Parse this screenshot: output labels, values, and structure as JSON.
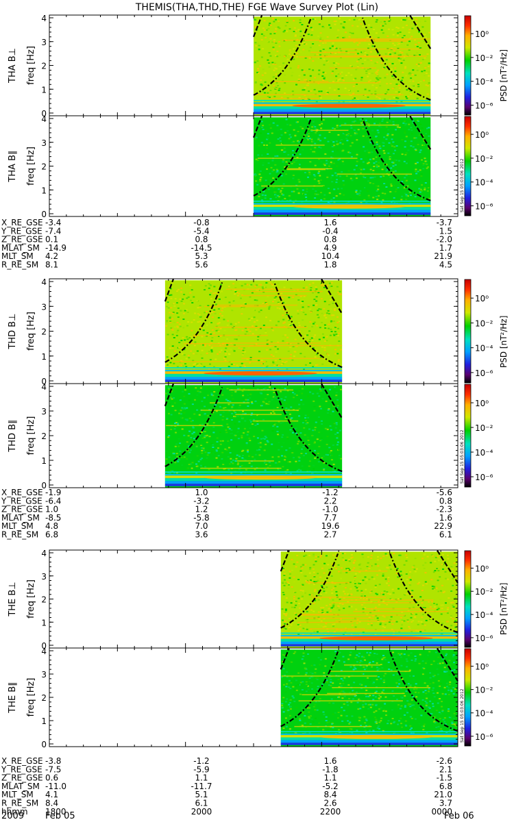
{
  "title": "THEMIS(THA,THD,THE) FGE Wave Survey Plot (Lin)",
  "psd_label": "PSD [nT²/Hz]",
  "freq_label": "freq [Hz]",
  "stamp": "Sat Sep 15 05:03:06 2012",
  "colorbar_ticks": [
    "10⁰",
    "10⁻²",
    "10⁻⁴",
    "10⁻⁶"
  ],
  "panels": [
    {
      "ylabel": "THA B⊥"
    },
    {
      "ylabel": "THA B∥"
    },
    {
      "ylabel": "THD B⊥"
    },
    {
      "ylabel": "THD B∥"
    },
    {
      "ylabel": "THE B⊥"
    },
    {
      "ylabel": "THE B∥"
    }
  ],
  "ephemeris": [
    {
      "rows": [
        {
          "label": "X_RE_GSE",
          "values": [
            "-3.4",
            "-0.8",
            "1.6",
            "-3.7"
          ]
        },
        {
          "label": "Y_RE_GSE",
          "values": [
            "-7.4",
            "-5.4",
            "-0.4",
            "1.5"
          ]
        },
        {
          "label": "Z_RE_GSE",
          "values": [
            "0.1",
            "0.8",
            "0.8",
            "-2.0"
          ]
        },
        {
          "label": "MLAT_SM",
          "values": [
            "-14.9",
            "-14.5",
            "4.9",
            "1.7"
          ]
        },
        {
          "label": "MLT_SM",
          "values": [
            "4.2",
            "5.3",
            "10.4",
            "21.9"
          ]
        },
        {
          "label": "R_RE_SM",
          "values": [
            "8.1",
            "5.6",
            "1.8",
            "4.5"
          ]
        }
      ]
    },
    {
      "rows": [
        {
          "label": "X_RE_GSE",
          "values": [
            "-1.9",
            "1.0",
            "-1.2",
            "-5.6"
          ]
        },
        {
          "label": "Y_RE_GSE",
          "values": [
            "-6.4",
            "-3.2",
            "2.2",
            "0.8"
          ]
        },
        {
          "label": "Z_RE_GSE",
          "values": [
            "1.0",
            "1.2",
            "-1.0",
            "-2.3"
          ]
        },
        {
          "label": "MLAT_SM",
          "values": [
            "-8.5",
            "-5.8",
            "7.7",
            "1.6"
          ]
        },
        {
          "label": "MLT_SM",
          "values": [
            "4.8",
            "7.0",
            "19.6",
            "22.9"
          ]
        },
        {
          "label": "R_RE_SM",
          "values": [
            "6.8",
            "3.6",
            "2.7",
            "6.1"
          ]
        }
      ]
    },
    {
      "rows": [
        {
          "label": "X_RE_GSE",
          "values": [
            "-3.8",
            "-1.2",
            "1.6",
            "-2.6"
          ]
        },
        {
          "label": "Y_RE_GSE",
          "values": [
            "-7.5",
            "-5.9",
            "-1.8",
            "2.1"
          ]
        },
        {
          "label": "Z_RE_GSE",
          "values": [
            "0.6",
            "1.1",
            "1.1",
            "-1.5"
          ]
        },
        {
          "label": "MLAT_SM",
          "values": [
            "-11.0",
            "-11.7",
            "-5.2",
            "6.8"
          ]
        },
        {
          "label": "MLT_SM",
          "values": [
            "4.1",
            "5.1",
            "8.4",
            "21.0"
          ]
        },
        {
          "label": "R_RE_SM",
          "values": [
            "8.4",
            "6.1",
            "2.6",
            "3.7"
          ]
        },
        {
          "label": "hhmm",
          "values": [
            "1800",
            "2000",
            "2200",
            "0000"
          ]
        }
      ]
    }
  ],
  "date_left": {
    "year": "2009",
    "day": "Feb 05"
  },
  "date_right": "Feb 06",
  "chart_data": {
    "type": "heatmap",
    "title": "THEMIS(THA,THD,THE) FGE Wave Survey Plot (Lin)",
    "ylabel": "freq [Hz]",
    "ylim": [
      0,
      4
    ],
    "yticks": [
      0,
      1,
      2,
      3,
      4
    ],
    "xlim_hours": [
      18,
      24
    ],
    "xticks": [
      "1800",
      "2000",
      "2200",
      "0000"
    ],
    "colorbar": {
      "label": "PSD [nT²/Hz]",
      "scale": "log",
      "range": [
        1e-07,
        10
      ],
      "ticks": [
        1,
        0.01,
        0.0001,
        1e-06
      ]
    },
    "probes": [
      {
        "name": "THA",
        "data_start_h": 21.0,
        "data_end_h": 23.6
      },
      {
        "name": "THD",
        "data_start_h": 19.7,
        "data_end_h": 22.3
      },
      {
        "name": "THE",
        "data_start_h": 21.4,
        "data_end_h": 24.0
      }
    ]
  }
}
